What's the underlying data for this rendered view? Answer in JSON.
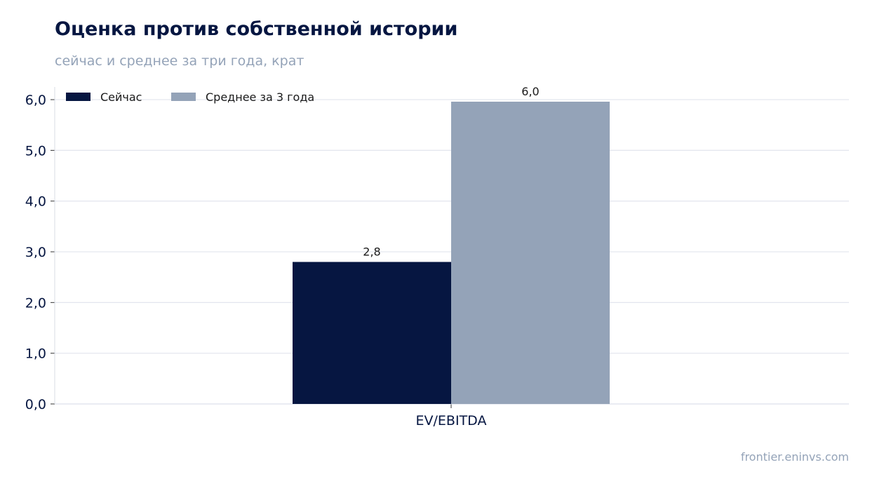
{
  "title": "Оценка против собственной истории",
  "subtitle": "сейчас и среднее за три года, крат",
  "source": "frontier.eninvs.com",
  "colors": {
    "series_now": "#061641",
    "series_avg": "#94a3b8",
    "grid": "#e2e5ee",
    "axis": "#d9dde6",
    "text_dark": "#061641",
    "text_muted": "#94a3b8"
  },
  "chart_data": {
    "type": "bar",
    "categories": [
      "EV/EBITDA"
    ],
    "series": [
      {
        "name": "Сейчас",
        "values": [
          2.8
        ],
        "labels": [
          "2,8"
        ]
      },
      {
        "name": "Среднее за 3 года",
        "values": [
          5.96
        ],
        "labels": [
          "6,0"
        ]
      }
    ],
    "ylim": [
      0,
      6.25
    ],
    "yticks": [
      0,
      1,
      2,
      3,
      4,
      5,
      6
    ],
    "ytick_labels": [
      "0,0",
      "1,0",
      "2,0",
      "3,0",
      "4,0",
      "5,0",
      "6,0"
    ],
    "grid": true,
    "legend": "top-left",
    "xlabel": "",
    "ylabel": ""
  }
}
